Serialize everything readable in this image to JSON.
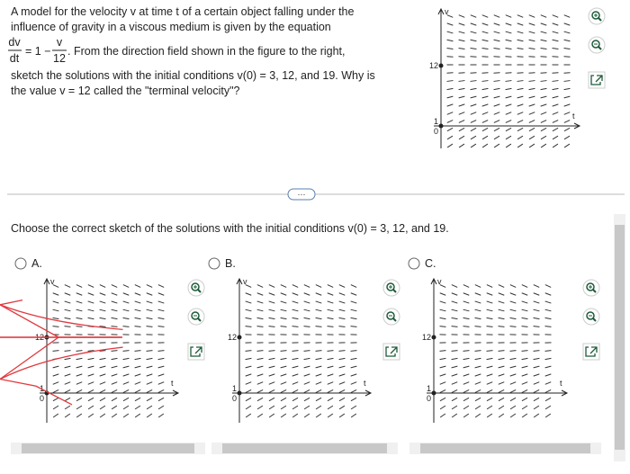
{
  "problem": {
    "intro": [
      "A model for the velocity v at time t of a certain object falling under the",
      "influence of gravity in a viscous medium is given by the equation"
    ],
    "equation": {
      "lhs_num": "dv",
      "lhs_den": "dt",
      "middle": "= 1 −",
      "rhs_num": "v",
      "rhs_den": "12"
    },
    "after_equation": ". From the direction field shown in the figure to the right,",
    "lines": [
      "sketch the solutions with the initial conditions v(0) = 3, 12, and 19. Why is",
      "the value v = 12 called the \"terminal velocity\"?"
    ]
  },
  "graph_labels": {
    "v": "v",
    "t": "t",
    "v_tick": "12",
    "small_ticks": [
      "1",
      "0"
    ]
  },
  "more_button": "···",
  "question": "Choose the correct sketch of the solutions with the initial conditions v(0) = 3, 12, and 19.",
  "options": [
    {
      "label": "A."
    },
    {
      "label": "B."
    },
    {
      "label": "C."
    }
  ]
}
